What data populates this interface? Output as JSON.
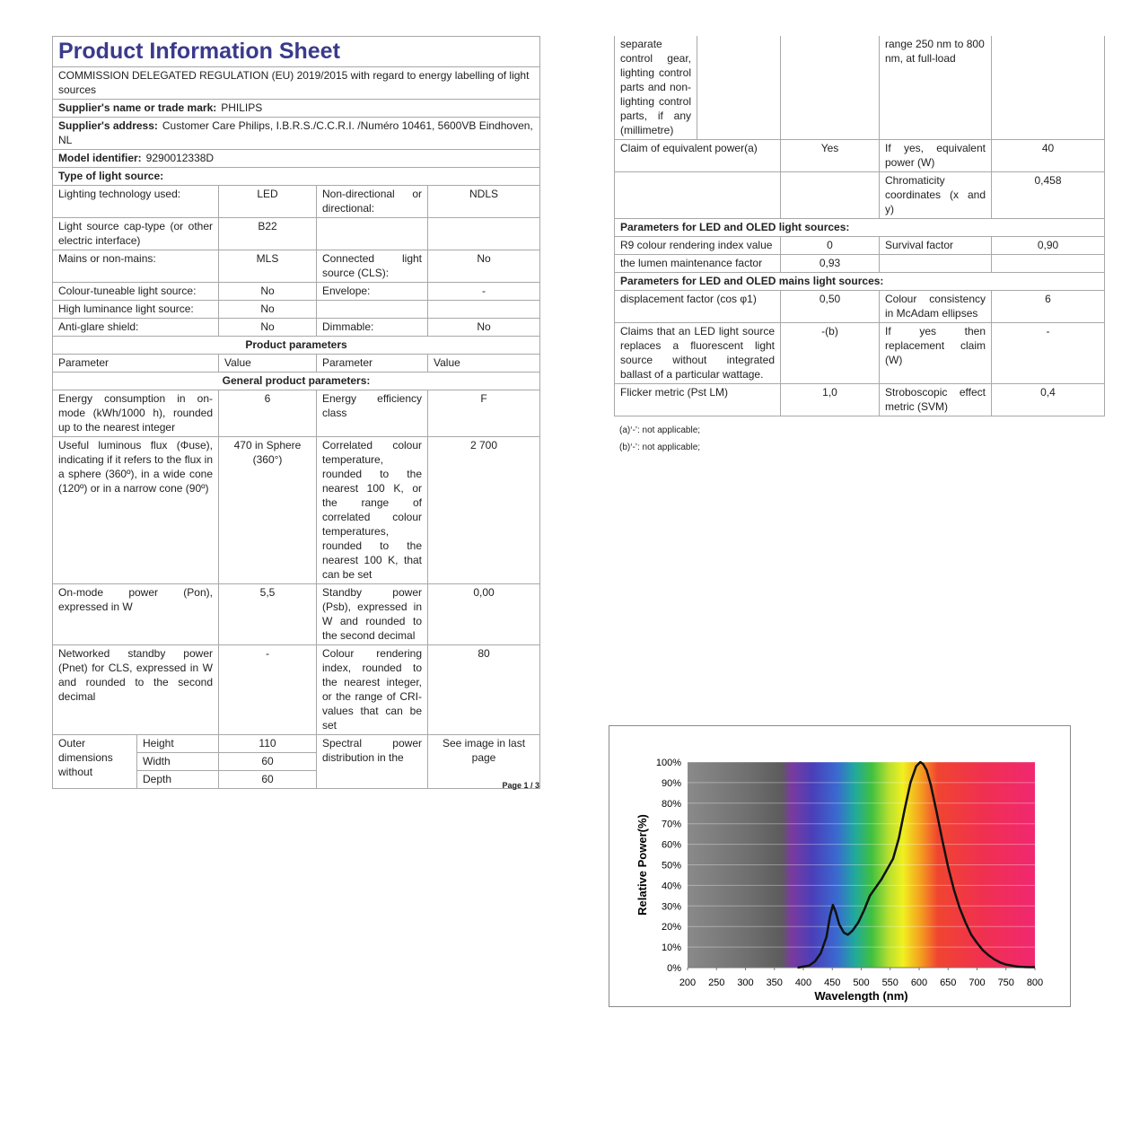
{
  "left": {
    "title": "Product Information Sheet",
    "regulation": "COMMISSION DELEGATED REGULATION (EU) 2019/2015 with regard to energy labelling of light sources",
    "supplier_name": {
      "label": "Supplier's name or trade mark:",
      "value": "PHILIPS"
    },
    "supplier_address": {
      "label": "Supplier's address:",
      "value": "Customer Care Philips, I.B.R.S./C.C.R.I. /Numéro 10461, 5600VB Eindhoven, NL"
    },
    "model": {
      "label": "Model identifier:",
      "value": "9290012338D"
    },
    "type_heading": "Type of light source:",
    "type_rows": [
      [
        "Lighting technology used:",
        "LED",
        "Non-directional or directional:",
        "NDLS"
      ],
      [
        "Light source cap-type (or other electric interface)",
        "B22",
        null,
        null
      ],
      [
        "Mains or non-mains:",
        "MLS",
        "Connected light source (CLS):",
        "No"
      ],
      [
        "Colour-tuneable light source:",
        "No",
        "Envelope:",
        "-"
      ],
      [
        "High luminance light source:",
        "No",
        null,
        null
      ],
      [
        "Anti-glare shield:",
        "No",
        "Dimmable:",
        "No"
      ]
    ],
    "product_parameters": "Product parameters",
    "param_header": [
      "Parameter",
      "Value",
      "Parameter",
      "Value"
    ],
    "general_heading": "General product parameters:",
    "general_rows": [
      [
        "Energy consumption in on-mode (kWh/1000 h), rounded up to the nearest integer",
        "6",
        "Energy efficiency class",
        "F"
      ],
      [
        "Useful luminous flux (Φuse), indicating if it refers to the flux in a sphere (360º), in a wide cone (120º) or in a narrow cone (90º)",
        "470 in Sphere (360°)",
        "Correlated colour temperature, rounded to the nearest 100 K, or the range of correlated colour temperatures, rounded to the nearest 100 K, that can be set",
        "2 700"
      ],
      [
        "On-mode power (Pon), expressed in W",
        "5,5",
        "Standby power (Psb), expressed in W and rounded to the second decimal",
        "0,00"
      ],
      [
        "Networked standby power (Pnet) for CLS, expressed in W and rounded to the second decimal",
        "-",
        "Colour rendering index, rounded to the nearest integer, or the range of CRI-values that can be set",
        "80"
      ]
    ],
    "dimensions": {
      "label": "Outer dimensions without",
      "rows": [
        [
          "Height",
          "110"
        ],
        [
          "Width",
          "60"
        ],
        [
          "Depth",
          "60"
        ]
      ],
      "parameter": "Spectral power distribution in the",
      "value": "See image in last page"
    },
    "page": "Page 1 / 3"
  },
  "right": {
    "first_row": [
      "separate control gear, lighting control parts and non-lighting control parts, if any (millimetre)",
      null,
      null,
      "range 250 nm to 800 nm, at full-load",
      null
    ],
    "rows": [
      [
        "Claim of equivalent power(a)",
        "Yes",
        "If yes, equivalent power (W)",
        "40"
      ],
      [
        null,
        null,
        "Chromaticity coordinates (x and y)",
        "0,458"
      ],
      "Parameters for LED and OLED light sources:",
      [
        "R9 colour rendering index value",
        "0",
        "Survival factor",
        "0,90"
      ],
      [
        "the lumen maintenance factor",
        "0,93",
        null,
        null
      ],
      "Parameters for LED and OLED mains light sources:",
      [
        "displacement factor (cos φ1)",
        "0,50",
        "Colour consistency in McAdam ellipses",
        "6"
      ],
      [
        "Claims that an LED light source replaces a fluorescent light source without integrated ballast of a particular wattage.",
        "-(b)",
        "If yes then replacement claim (W)",
        "-"
      ],
      [
        "Flicker metric (Pst LM)",
        "1,0",
        "Stroboscopic effect metric (SVM)",
        "0,4"
      ]
    ],
    "notes": [
      "(a)‘-’: not applicable;",
      "(b)‘-’: not applicable;"
    ]
  },
  "chart_data": {
    "type": "line",
    "xlabel": "Wavelength (nm)",
    "ylabel": "Relative Power(%)",
    "color": "#111111",
    "x": [
      390,
      400,
      410,
      420,
      430,
      440,
      446,
      451,
      456,
      462,
      470,
      477,
      485,
      495,
      505,
      515,
      525,
      535,
      545,
      555,
      565,
      575,
      585,
      595,
      602,
      607,
      613,
      620,
      630,
      640,
      650,
      660,
      670,
      680,
      690,
      700,
      710,
      720,
      730,
      740,
      750,
      760,
      770,
      780,
      790,
      800
    ],
    "values": [
      0,
      0.5,
      1,
      3,
      7,
      15,
      25,
      30.5,
      27,
      21,
      17,
      16,
      18,
      22,
      28,
      35,
      39,
      43,
      48,
      53,
      63,
      77,
      90,
      98,
      100,
      99,
      96,
      89,
      76,
      62,
      49,
      38,
      29,
      22,
      16,
      12,
      8.5,
      6,
      4,
      2.5,
      1.5,
      1,
      0.5,
      0.3,
      0.2,
      0.2
    ],
    "xlim": [
      200,
      800
    ],
    "ylim": [
      0,
      100
    ],
    "xticks": [
      200,
      250,
      300,
      350,
      400,
      450,
      500,
      550,
      600,
      650,
      700,
      750,
      800
    ],
    "yticks": [
      {
        "value": 0,
        "label": "0%"
      },
      {
        "value": 10,
        "label": "10%"
      },
      {
        "value": 20,
        "label": "20%"
      },
      {
        "value": 30,
        "label": "30%"
      },
      {
        "value": 40,
        "label": "40%"
      },
      {
        "value": 50,
        "label": "50%"
      },
      {
        "value": 60,
        "label": "60%"
      },
      {
        "value": 70,
        "label": "70%"
      },
      {
        "value": 80,
        "label": "80%"
      },
      {
        "value": 90,
        "label": "90%"
      },
      {
        "value": 100,
        "label": "100%"
      }
    ],
    "grid": true
  }
}
